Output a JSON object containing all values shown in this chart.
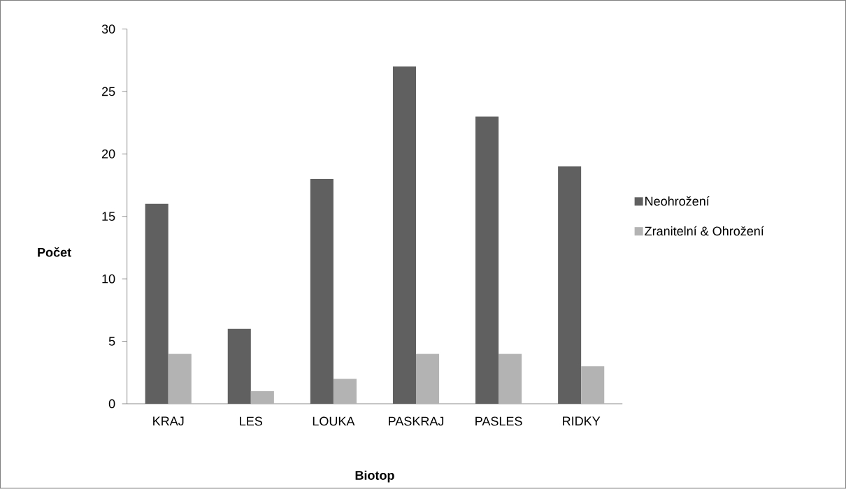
{
  "chart_data": {
    "type": "bar",
    "xlabel": "Biotop",
    "ylabel": "Počet",
    "categories": [
      "KRAJ",
      "LES",
      "LOUKA",
      "PASKRAJ",
      "PASLES",
      "RIDKY"
    ],
    "series": [
      {
        "name": "Neohrožení",
        "color": "#606060",
        "values": [
          16,
          6,
          18,
          27,
          23,
          19
        ]
      },
      {
        "name": "Zranitelní &  Ohrožení",
        "color": "#b3b3b3",
        "values": [
          4,
          1,
          2,
          4,
          4,
          3
        ]
      }
    ],
    "ylim": [
      0,
      30
    ],
    "yticks": [
      0,
      5,
      10,
      15,
      20,
      25,
      30
    ],
    "legend": "right"
  }
}
